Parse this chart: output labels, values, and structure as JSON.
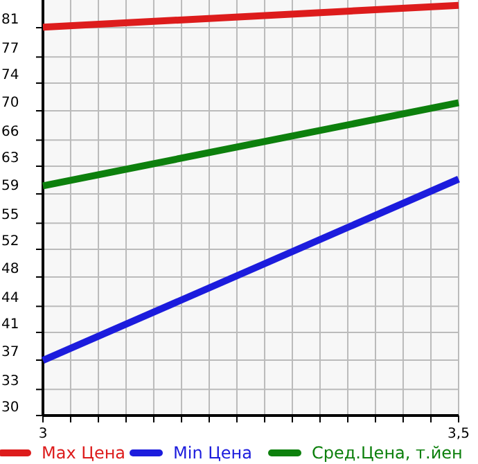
{
  "chart_data": {
    "type": "line",
    "x": [
      3,
      3.5
    ],
    "series": [
      {
        "name": "Max Цена",
        "color": "#dd1c1c",
        "values": [
          81.4,
          84.3
        ]
      },
      {
        "name": "Min Цена",
        "color": "#1c1cdd",
        "values": [
          37.3,
          61.3
        ]
      },
      {
        "name": "Сред.Цена, т.йен",
        "color": "#0d800d",
        "values": [
          60.4,
          71.4
        ]
      }
    ],
    "xlim": [
      3,
      3.5
    ],
    "xticks": [
      3,
      {
        "value": 3.0333,
        "label": null
      },
      {
        "value": 3.0667,
        "label": null
      },
      {
        "value": 3.1,
        "label": null
      },
      {
        "value": 3.1333,
        "label": null
      },
      {
        "value": 3.1667,
        "label": null
      },
      {
        "value": 3.2,
        "label": null
      },
      {
        "value": 3.2333,
        "label": null
      },
      {
        "value": 3.2667,
        "label": null
      },
      {
        "value": 3.3,
        "label": null
      },
      {
        "value": 3.3333,
        "label": null
      },
      {
        "value": 3.3667,
        "label": null
      },
      {
        "value": 3.4,
        "label": null
      },
      {
        "value": 3.4333,
        "label": null
      },
      {
        "value": 3.4667,
        "label": null
      },
      {
        "value": 3.5,
        "label": "3,5"
      }
    ],
    "ylim": [
      30,
      85
    ],
    "yticks": [
      30,
      {
        "value": 33.45,
        "label": "33"
      },
      {
        "value": 37.333,
        "label": "37"
      },
      41,
      {
        "value": 44.45,
        "label": "44"
      },
      {
        "value": 48.333,
        "label": "48"
      },
      52,
      {
        "value": 55.45,
        "label": "55"
      },
      {
        "value": 59.333,
        "label": "59"
      },
      63,
      {
        "value": 66.45,
        "label": "66"
      },
      {
        "value": 70.333,
        "label": "70"
      },
      74,
      {
        "value": 77.45,
        "label": "77"
      },
      {
        "value": 81.333,
        "label": "81"
      }
    ],
    "grid": true,
    "legend": "bottom",
    "marker": "none",
    "line_style": "solid"
  }
}
